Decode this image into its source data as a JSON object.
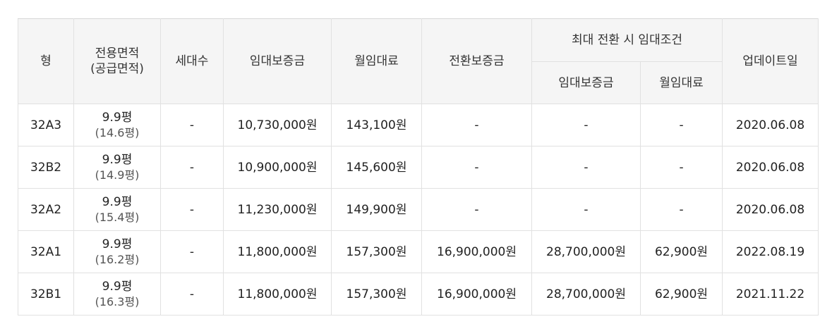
{
  "header": {
    "type": "형",
    "area_line1": "전용면적",
    "area_line2": "(공급면적)",
    "households": "세대수",
    "deposit": "임대보증금",
    "monthly_rent": "월임대료",
    "conversion_deposit": "전환보증금",
    "max_conversion_group": "최대 전환 시 임대조건",
    "max_deposit": "임대보증금",
    "max_monthly_rent": "월임대료",
    "update_date": "업데이트일"
  },
  "rows": [
    {
      "type": "32A3",
      "area": "9.9평",
      "supply": "(14.6평)",
      "households": "-",
      "deposit": "10,730,000원",
      "rent": "143,100원",
      "conversion": "-",
      "max_deposit": "-",
      "max_rent": "-",
      "updated": "2020.06.08"
    },
    {
      "type": "32B2",
      "area": "9.9평",
      "supply": "(14.9평)",
      "households": "-",
      "deposit": "10,900,000원",
      "rent": "145,600원",
      "conversion": "-",
      "max_deposit": "-",
      "max_rent": "-",
      "updated": "2020.06.08"
    },
    {
      "type": "32A2",
      "area": "9.9평",
      "supply": "(15.4평)",
      "households": "-",
      "deposit": "11,230,000원",
      "rent": "149,900원",
      "conversion": "-",
      "max_deposit": "-",
      "max_rent": "-",
      "updated": "2020.06.08"
    },
    {
      "type": "32A1",
      "area": "9.9평",
      "supply": "(16.2평)",
      "households": "-",
      "deposit": "11,800,000원",
      "rent": "157,300원",
      "conversion": "16,900,000원",
      "max_deposit": "28,700,000원",
      "max_rent": "62,900원",
      "updated": "2022.08.19"
    },
    {
      "type": "32B1",
      "area": "9.9평",
      "supply": "(16.3평)",
      "households": "-",
      "deposit": "11,800,000원",
      "rent": "157,300원",
      "conversion": "16,900,000원",
      "max_deposit": "28,700,000원",
      "max_rent": "62,900원",
      "updated": "2021.11.22"
    }
  ]
}
